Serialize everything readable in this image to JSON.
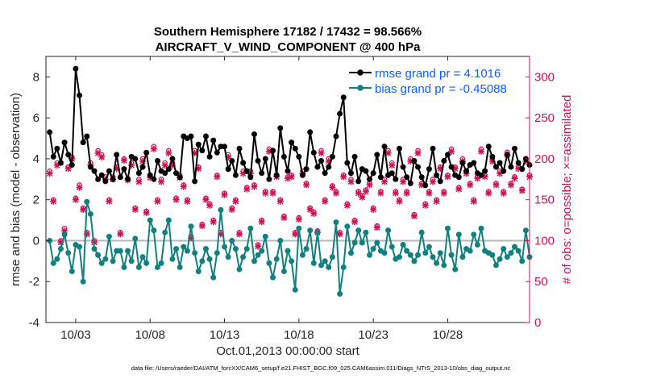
{
  "chart_data": {
    "type": "line",
    "title": "Southern Hemisphere 17182 / 17432 = 98.566%",
    "subtitle": "AIRCRAFT_V_WIND_COMPONENT @ 400 hPa",
    "xlabel": "Oct.01,2013 00:00:00 start",
    "ylabel_left": "rmse and bias (model - observation)",
    "ylabel_right": "# of obs: o=possible; ×=assimilated",
    "footer": "data file: /Users/raeder/DAI/ATM_forcXX/CAM6_setup/f.e21.FHIST_BGC.f09_025.CAM6assim.011/Diags_NTrS_2013-10/obs_diag_output.nc",
    "xlim": [
      1.0,
      33.5
    ],
    "ylim_left": [
      -4,
      9
    ],
    "ylim_right": [
      0,
      325
    ],
    "left_ticks": [
      "-4",
      "-2",
      "0",
      "2",
      "4",
      "6",
      "8"
    ],
    "right_ticks": [
      "0",
      "50",
      "100",
      "150",
      "200",
      "250",
      "300"
    ],
    "x_ticks": [
      {
        "day": 3,
        "label": "10/03"
      },
      {
        "day": 8,
        "label": "10/08"
      },
      {
        "day": 13,
        "label": "10/13"
      },
      {
        "day": 18,
        "label": "10/18"
      },
      {
        "day": 23,
        "label": "10/23"
      },
      {
        "day": 28,
        "label": "10/28"
      }
    ],
    "legend": {
      "position": "top-right",
      "entries": [
        {
          "label": "rmse grand pr = 4.1016",
          "color": "#000000"
        },
        {
          "label": "bias grand pr = -0.45088",
          "color": "#118080"
        }
      ]
    },
    "zero_line": 0,
    "colors": {
      "rmse": "#000000",
      "bias": "#118080",
      "obs": "#d01158",
      "zero": "#b8b8b8",
      "legend_text": "#0b5fff",
      "right_axis": "#d01158"
    },
    "series": [
      {
        "name": "rmse",
        "x_start": 1.25,
        "x_step": 0.25,
        "values": [
          5.3,
          4.1,
          4.5,
          3.8,
          4.8,
          4.2,
          3.7,
          8.4,
          7.1,
          4.8,
          5.1,
          3.6,
          3.4,
          3.0,
          3.2,
          2.9,
          3.4,
          3.0,
          4.2,
          3.1,
          3.5,
          3.0,
          4.1,
          4.0,
          3.3,
          3.6,
          4.3,
          3.2,
          3.0,
          3.9,
          3.4,
          3.3,
          3.5,
          4.0,
          3.3,
          3.1,
          5.1,
          5.0,
          5.1,
          2.9,
          4.7,
          4.4,
          5.1,
          4.1,
          4.9,
          4.3,
          4.6,
          4.6,
          3.5,
          3.9,
          3.2,
          4.5,
          3.8,
          3.4,
          3.1,
          5.2,
          3.9,
          3.3,
          4.0,
          3.0,
          4.4,
          3.2,
          5.5,
          4.1,
          3.4,
          4.8,
          4.5,
          4.1,
          3.2,
          3.5,
          5.3,
          4.3,
          3.6,
          3.9,
          3.3,
          3.6,
          4.1,
          5.1,
          6.2,
          7.0,
          3.8,
          3.3,
          4.1,
          2.9,
          3.5,
          3.4,
          3.0,
          3.3,
          4.2,
          3.1,
          4.6,
          3.2,
          3.3,
          3.0,
          4.5,
          3.6,
          3.1,
          2.8,
          3.9,
          3.6,
          3.1,
          2.7,
          3.5,
          4.5,
          3.2,
          2.9,
          3.9,
          4.2,
          3.6,
          3.2,
          3.1,
          3.8,
          3.4,
          3.7,
          3.8,
          3.3,
          3.2,
          3.4,
          4.6,
          4.1,
          3.6,
          3.8,
          3.4,
          4.2,
          3.6,
          4.5,
          3.8,
          3.5,
          4.0,
          3.7,
          3.4,
          4.1,
          3.6,
          3.5,
          3.8,
          3.3,
          3.9,
          3.4,
          3.8,
          4.2,
          4.6,
          3.6,
          4.1,
          3.3,
          3.5,
          3.9,
          3.2,
          4.6,
          3.5,
          3.2,
          3.7,
          4.0,
          3.1,
          3.8,
          3.4,
          4.4,
          3.7,
          4.0,
          3.5,
          3.9,
          3.6,
          3.7,
          3.2,
          3.0,
          3.6,
          4.3,
          3.8,
          3.3,
          3.9,
          4.1,
          3.4,
          4.7,
          3.6,
          3.4,
          3.2,
          3.9,
          3.4,
          3.5,
          3.7,
          3.4,
          3.5,
          3.6,
          3.7,
          3.5,
          3.3,
          3.4,
          3.6,
          3.5,
          3.2,
          3.0,
          3.6,
          3.9,
          3.7,
          3.5,
          3.4,
          3.6,
          3.3,
          3.8,
          3.4,
          3.5,
          3.5,
          3.3,
          3.6,
          3.4,
          3.9,
          3.5,
          3.6,
          3.7,
          3.8,
          4.0,
          4.2,
          3.5,
          3.4,
          3.6,
          3.5,
          3.4,
          3.8,
          3.6,
          3.4,
          3.5,
          3.6,
          3.4,
          3.3,
          3.6,
          3.5,
          3.4,
          3.5,
          3.6,
          3.4,
          3.3,
          3.5,
          3.4,
          3.5,
          3.3,
          3.4,
          3.5,
          3.4,
          3.5,
          3.5,
          3.5,
          3.4,
          3.5,
          3.4,
          3.5,
          3.5,
          3.4,
          3.5,
          3.4,
          3.5,
          3.5,
          3.4,
          3.5,
          3.4,
          3.5,
          3.5,
          3.4,
          3.5,
          3.4,
          3.5,
          3.4,
          3.5,
          3.5,
          3.4,
          3.5,
          3.4,
          3.5,
          3.5,
          3.4,
          3.5,
          3.4,
          3.5,
          3.5,
          3.4,
          3.5,
          3.4,
          3.5,
          3.5,
          3.4,
          3.5,
          3.4,
          3.5,
          3.4,
          3.5,
          3.5,
          3.4,
          3.5,
          3.4,
          3.5,
          3.5,
          3.4,
          3.5
        ]
      },
      {
        "name": "bias",
        "x_start": 1.25,
        "x_step": 0.25,
        "values": [
          0.0,
          -1.1,
          -0.9,
          -0.4,
          0.3,
          -0.6,
          -1.5,
          -0.2,
          -0.3,
          -2.0,
          1.9,
          1.3,
          -0.4,
          -0.7,
          -1.1,
          -0.9,
          0.2,
          -1.0,
          -0.5,
          -0.5,
          -1.3,
          -0.5,
          -1.0,
          0.1,
          -1.3,
          -0.8,
          -1.1,
          1.0,
          0.5,
          -1.3,
          -1.1,
          0.4,
          1.0,
          -0.9,
          -0.4,
          -1.3,
          -0.3,
          -0.5,
          0.7,
          -0.6,
          -1.5,
          -1.0,
          -0.4,
          -0.9,
          -1.8,
          -0.6,
          1.5,
          -0.3,
          -0.8,
          0.0,
          -0.4,
          -1.4,
          -0.8,
          -0.4,
          0.6,
          -1.0,
          -0.7,
          -0.5,
          0.2,
          -1.1,
          -1.8,
          -0.9,
          0.0,
          -1.5,
          -0.5,
          -1.0,
          -2.4,
          0.6,
          -0.7,
          -0.4,
          0.5,
          -1.1,
          0.4,
          -1.2,
          -1.0,
          -1.3,
          -0.8,
          0.9,
          -2.6,
          -1.3,
          0.7,
          -0.6,
          -0.1,
          0.5,
          -0.1,
          0.4,
          -0.7,
          -0.4,
          -0.1,
          -0.5,
          -0.6,
          0.5,
          -0.3,
          -0.9,
          -0.8,
          -0.2,
          -0.5,
          -0.7,
          -1.0,
          -0.7,
          0.4,
          -0.6,
          -0.3,
          -0.8,
          -1.1,
          -0.6,
          -1.2,
          0.6,
          -0.7,
          -1.4,
          0.3,
          -0.8,
          -0.4,
          -0.5,
          0.3,
          -0.2,
          0.6,
          -0.5,
          -0.6,
          -0.7,
          -1.2,
          -0.9,
          -0.4,
          -0.8,
          -0.6,
          -0.3,
          -0.5,
          -1.0,
          0.5,
          -0.8,
          -0.6,
          -0.4,
          -0.9,
          -1.1,
          -0.6,
          -1.5,
          -0.8,
          -0.3,
          -0.7,
          -0.9,
          -0.5,
          -1.0,
          -0.4,
          -0.6,
          -0.8,
          -1.3,
          -0.7,
          -0.3,
          -0.5,
          -1.4,
          -0.9,
          -0.6,
          -0.4,
          -0.7,
          -1.0,
          -0.5,
          -0.8,
          -0.6,
          -0.3,
          -0.9,
          -3.5,
          -0.5,
          1.2,
          0.8,
          -1.1,
          -0.6,
          -0.5,
          -0.7,
          -1.3,
          -0.4,
          -0.8,
          -0.6,
          -0.9,
          -0.6,
          -1.2,
          -0.7,
          -0.4,
          -0.5,
          -0.7,
          -0.6,
          -0.5,
          -0.7,
          -0.6,
          -0.8,
          -0.5,
          -0.7
        ]
      },
      {
        "name": "obs_possible",
        "x_start": 1.25,
        "x_step": 0.25,
        "values": [
          185,
          150,
          195,
          100,
          115,
          190,
          202,
          152,
          168,
          140,
          110,
          195,
          100,
          210,
          205,
          178,
          150,
          178,
          190,
          110,
          200,
          176,
          195,
          140,
          175,
          200,
          136,
          180,
          215,
          150,
          175,
          195,
          210,
          195,
          152,
          180,
          168,
          150,
          105,
          210,
          190,
          120,
          152,
          145,
          125,
          180,
          110,
          158,
          205,
          140,
          150,
          110,
          185,
          165,
          185,
          168,
          95,
          125,
          160,
          212,
          160,
          180,
          150,
          130,
          178,
          180,
          110,
          128,
          185,
          170,
          140,
          135,
          112,
          210,
          150,
          200,
          167,
          160,
          110,
          180,
          145,
          175,
          125,
          160,
          155,
          162,
          170,
          140,
          118,
          160,
          175,
          210,
          195,
          160,
          150,
          175,
          160,
          200,
          132,
          210,
          170,
          145,
          160,
          175,
          150,
          190,
          160,
          180,
          212,
          190,
          165,
          200,
          185,
          170,
          150,
          178,
          212,
          180,
          160,
          200,
          170,
          185,
          160,
          208,
          170,
          178,
          190,
          163,
          200,
          180,
          168,
          210,
          180,
          172,
          190,
          170,
          200,
          183,
          176,
          192,
          175,
          168,
          190,
          180,
          200,
          176,
          185,
          178,
          195,
          182,
          188,
          176,
          200,
          183,
          190,
          180,
          186,
          194,
          178,
          188,
          182,
          196,
          180,
          186,
          192,
          184,
          190,
          186
        ]
      },
      {
        "name": "obs_assimilated",
        "x_start": 1.25,
        "x_step": 0.25,
        "values": [
          182,
          148,
          192,
          98,
          112,
          188,
          200,
          150,
          165,
          138,
          108,
          192,
          98,
          207,
          202,
          175,
          148,
          175,
          188,
          108,
          198,
          174,
          192,
          138,
          172,
          197,
          134,
          177,
          212,
          148,
          172,
          192,
          207,
          192,
          150,
          177,
          166,
          148,
          103,
          207,
          188,
          118,
          150,
          143,
          123,
          178,
          108,
          156,
          202,
          138,
          148,
          108,
          182,
          163,
          182,
          166,
          93,
          123,
          158,
          209,
          158,
          178,
          148,
          128,
          176,
          178,
          108,
          126,
          182,
          168,
          138,
          133,
          110,
          207,
          148,
          197,
          165,
          158,
          108,
          178,
          143,
          172,
          123,
          158,
          153,
          160,
          168,
          138,
          116,
          158,
          172,
          207,
          192,
          158,
          148,
          172,
          158,
          197,
          130,
          207,
          168,
          143,
          158,
          172,
          148,
          188,
          158,
          178,
          209,
          188,
          163,
          197,
          182,
          168,
          148,
          176,
          209,
          178,
          158,
          197,
          168,
          182,
          158,
          205,
          168,
          176,
          188,
          161,
          197,
          178,
          166,
          207,
          178,
          170,
          188,
          168,
          197,
          181,
          174,
          190,
          173,
          166,
          188,
          178,
          197,
          174,
          182,
          176,
          192,
          180,
          186,
          174,
          197,
          181,
          188,
          178,
          184,
          192,
          176,
          186,
          180,
          194,
          178,
          184,
          190,
          182,
          188,
          184
        ]
      }
    ]
  }
}
